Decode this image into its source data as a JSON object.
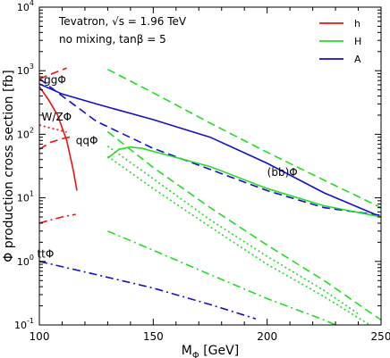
{
  "chart_data": {
    "type": "line",
    "title": "",
    "xlabel": "M",
    "xlabel_sub": "Φ",
    "xlabel_unit": "[GeV]",
    "ylabel": "Φ production cross section [fb]",
    "xlim": [
      100,
      250
    ],
    "ylim": [
      0.1,
      10000
    ],
    "yscale": "log",
    "grid": false,
    "x_ticks": [
      100,
      150,
      200,
      250
    ],
    "y_ticks": [
      {
        "value": 0.1,
        "base": "10",
        "exp": "-1"
      },
      {
        "value": 1,
        "base": "10",
        "exp": "0"
      },
      {
        "value": 10,
        "base": "10",
        "exp": "1"
      },
      {
        "value": 100,
        "base": "10",
        "exp": "2"
      },
      {
        "value": 1000,
        "base": "10",
        "exp": "3"
      },
      {
        "value": 10000,
        "base": "10",
        "exp": "4"
      }
    ],
    "info_lines": [
      "Tevatron, √s = 1.96 TeV",
      "no mixing, tanβ = 5"
    ],
    "legend_position": "top-right",
    "legend": [
      {
        "name": "h",
        "color": "#ee1111"
      },
      {
        "name": "H",
        "color": "#22dd22"
      },
      {
        "name": "A",
        "color": "#1111cc"
      }
    ],
    "annotations": [
      {
        "text": "ggΦ",
        "x": 102,
        "y": 630
      },
      {
        "text": "W/ZΦ",
        "x": 101,
        "y": 165
      },
      {
        "text": "qqΦ",
        "x": 116,
        "y": 70
      },
      {
        "text": "(bb)Φ",
        "x": 200,
        "y": 22
      },
      {
        "text": "ttΦ",
        "x": 99,
        "y": 1.15
      }
    ],
    "series": [
      {
        "higgs": "A",
        "process": "gg",
        "style": "solid",
        "color": "#1111cc",
        "x": [
          100,
          110,
          125,
          150,
          175,
          200,
          225,
          250
        ],
        "y": [
          620,
          430,
          300,
          170,
          90,
          35,
          12,
          5.0
        ]
      },
      {
        "higgs": "A",
        "process": "bb",
        "style": "dash",
        "color": "#1111cc",
        "x": [
          100,
          110,
          125,
          150,
          175,
          200,
          225,
          250
        ],
        "y": [
          750,
          400,
          160,
          60,
          28,
          13,
          7.0,
          5.3
        ]
      },
      {
        "higgs": "A",
        "process": "tt",
        "style": "dashdot",
        "color": "#1111cc",
        "x": [
          100,
          125,
          150,
          175,
          195
        ],
        "y": [
          1.0,
          0.62,
          0.38,
          0.21,
          0.125
        ]
      },
      {
        "higgs": "h",
        "process": "gg",
        "style": "dash",
        "color": "#ee1111",
        "x": [
          100,
          104,
          108,
          112
        ],
        "y": [
          740,
          850,
          970,
          1100
        ]
      },
      {
        "higgs": "h",
        "process": "gg",
        "style": "solid",
        "color": "#ee1111",
        "x": [
          100,
          104,
          108,
          112,
          115,
          116.5
        ],
        "y": [
          560,
          350,
          200,
          80,
          26,
          13
        ]
      },
      {
        "higgs": "h",
        "process": "W/Z",
        "style": "dot",
        "color": "#ee1111",
        "x": [
          100,
          104,
          108,
          112
        ],
        "y": [
          140,
          128,
          118,
          108
        ]
      },
      {
        "higgs": "h",
        "process": "qq",
        "style": "dash",
        "color": "#ee1111",
        "x": [
          100,
          105,
          110,
          115
        ],
        "y": [
          58,
          75,
          85,
          93
        ]
      },
      {
        "higgs": "h",
        "process": "tt",
        "style": "dashdot",
        "color": "#ee1111",
        "x": [
          100,
          104,
          110,
          116
        ],
        "y": [
          4.0,
          4.4,
          5.0,
          5.5
        ]
      },
      {
        "higgs": "H",
        "process": "gg",
        "style": "dash",
        "color": "#22dd22",
        "x": [
          130,
          150,
          175,
          200,
          225,
          250
        ],
        "y": [
          1050,
          450,
          150,
          52,
          19,
          7.0
        ]
      },
      {
        "higgs": "H",
        "process": "gg",
        "style": "solid",
        "color": "#22dd22",
        "x": [
          130,
          135,
          140,
          145,
          150,
          175,
          200,
          225,
          250
        ],
        "y": [
          42,
          58,
          63,
          60,
          54,
          31,
          14,
          7.5,
          5.0
        ]
      },
      {
        "higgs": "H",
        "process": "bb",
        "style": "dash",
        "color": "#22dd22",
        "x": [
          130,
          150,
          175,
          200,
          225,
          250
        ],
        "y": [
          110,
          30,
          7.0,
          1.8,
          0.5,
          0.12
        ]
      },
      {
        "higgs": "H",
        "process": "W/Z",
        "style": "dot",
        "color": "#22dd22",
        "x": [
          130,
          150,
          175,
          200,
          225,
          240
        ],
        "y": [
          65,
          20,
          4.5,
          1.2,
          0.35,
          0.15
        ]
      },
      {
        "higgs": "H",
        "process": "qq",
        "style": "dot",
        "color": "#22dd22",
        "x": [
          130,
          150,
          175,
          200,
          225,
          245
        ],
        "y": [
          45,
          14,
          3.5,
          0.9,
          0.28,
          0.1
        ]
      },
      {
        "higgs": "H",
        "process": "tt",
        "style": "dashdot",
        "color": "#22dd22",
        "x": [
          130,
          150,
          175,
          200,
          225,
          240
        ],
        "y": [
          3.0,
          1.5,
          0.62,
          0.26,
          0.12,
          0.07
        ]
      }
    ]
  }
}
